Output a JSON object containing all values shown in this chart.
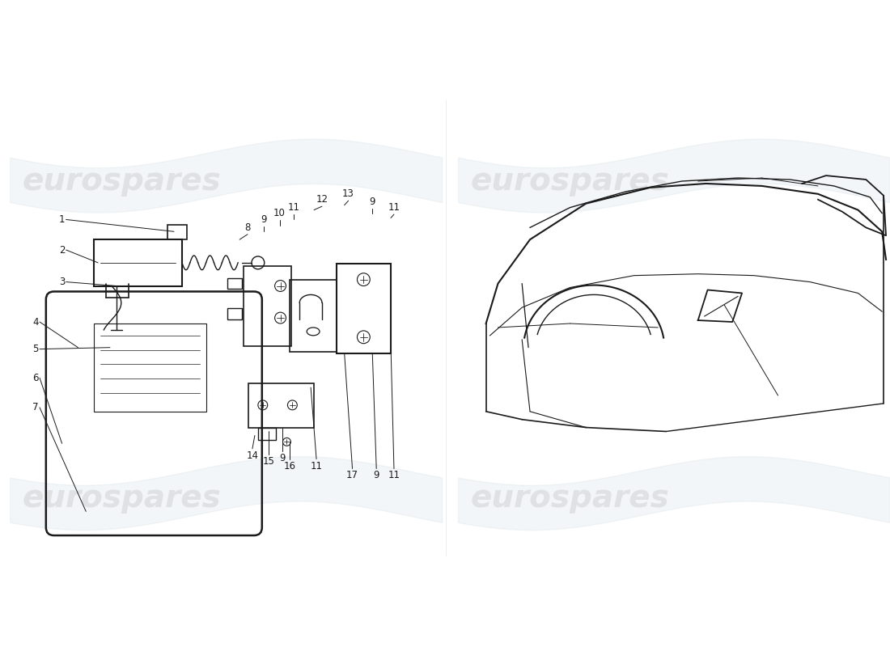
{
  "background_color": "#ffffff",
  "line_color": "#1a1a1a",
  "label_color": "#1a1a1a",
  "watermark_text": "eurospares",
  "watermark_color": "#d0d0d0",
  "watermark_alpha": 0.55,
  "watermark_fontsize": 28,
  "label_fontsize": 8.5,
  "wave_color": "#c8d8e0",
  "wave_alpha": 0.22
}
